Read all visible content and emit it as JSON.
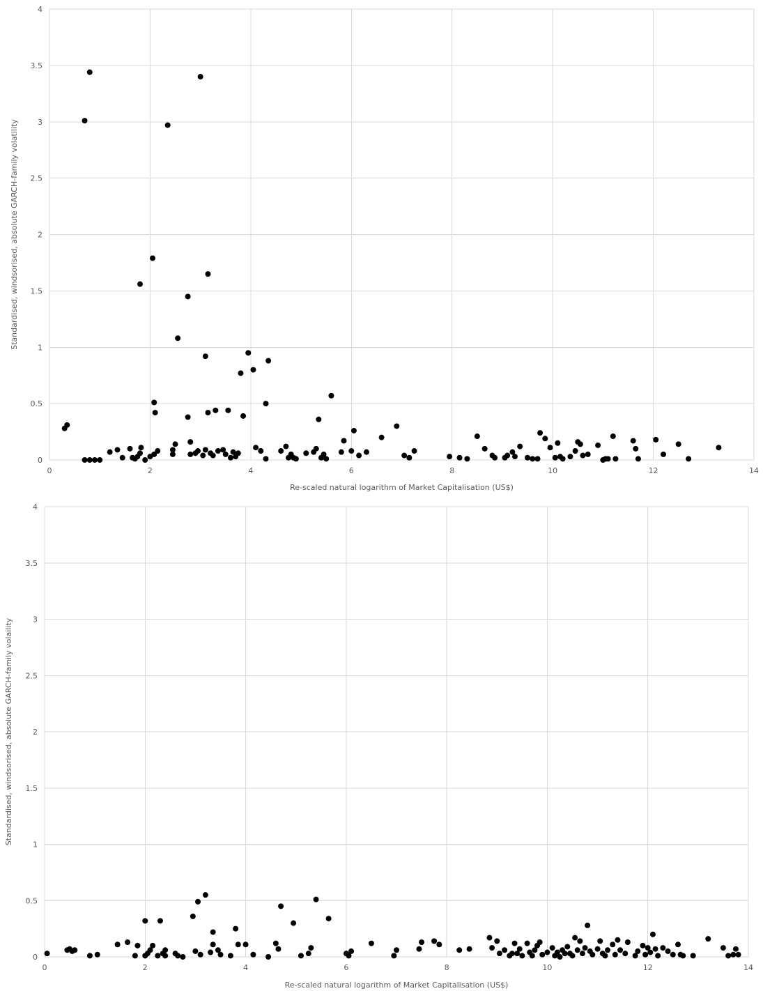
{
  "chart_data": [
    {
      "type": "scatter",
      "title": "",
      "xlabel": "Re-scaled natural logarithm of Market Capitalisation (US$)",
      "ylabel": "Standardised, windsorised, absolute GARCH-family volatility",
      "xlim": [
        0,
        14
      ],
      "ylim": [
        0,
        4
      ],
      "xticks": [
        0,
        2,
        4,
        6,
        8,
        10,
        12,
        14
      ],
      "yticks": [
        0,
        0.5,
        1,
        1.5,
        2,
        2.5,
        3,
        3.5,
        4
      ],
      "xtick_labels": [
        "0",
        "2",
        "4",
        "6",
        "8",
        "10",
        "12",
        "14"
      ],
      "ytick_labels": [
        "0",
        "0.5",
        "1",
        "1.5",
        "2",
        "2.5",
        "3",
        "3.5",
        "4"
      ],
      "grid": true,
      "marker_color": "#000000",
      "points": [
        [
          0.3,
          0.28
        ],
        [
          0.35,
          0.31
        ],
        [
          0.8,
          3.44
        ],
        [
          0.7,
          3.01
        ],
        [
          0.7,
          0.0
        ],
        [
          0.8,
          0.0
        ],
        [
          0.9,
          0.0
        ],
        [
          1.0,
          0.0
        ],
        [
          1.2,
          0.07
        ],
        [
          1.35,
          0.09
        ],
        [
          1.45,
          0.02
        ],
        [
          1.6,
          0.1
        ],
        [
          1.65,
          0.02
        ],
        [
          1.7,
          0.01
        ],
        [
          1.75,
          0.03
        ],
        [
          1.8,
          0.06
        ],
        [
          1.8,
          1.56
        ],
        [
          1.82,
          0.11
        ],
        [
          1.9,
          0.0
        ],
        [
          2.0,
          0.03
        ],
        [
          2.05,
          1.79
        ],
        [
          2.08,
          0.51
        ],
        [
          2.1,
          0.42
        ],
        [
          2.08,
          0.05
        ],
        [
          2.15,
          0.08
        ],
        [
          2.35,
          2.97
        ],
        [
          2.45,
          0.09
        ],
        [
          2.5,
          0.14
        ],
        [
          2.45,
          0.05
        ],
        [
          2.55,
          1.08
        ],
        [
          2.75,
          1.45
        ],
        [
          2.75,
          0.38
        ],
        [
          2.8,
          0.16
        ],
        [
          2.8,
          0.05
        ],
        [
          2.9,
          0.06
        ],
        [
          2.95,
          0.08
        ],
        [
          3.0,
          3.4
        ],
        [
          3.05,
          0.04
        ],
        [
          3.1,
          0.92
        ],
        [
          3.1,
          0.09
        ],
        [
          3.15,
          1.65
        ],
        [
          3.15,
          0.42
        ],
        [
          3.2,
          0.06
        ],
        [
          3.25,
          0.04
        ],
        [
          3.3,
          0.44
        ],
        [
          3.35,
          0.08
        ],
        [
          3.45,
          0.09
        ],
        [
          3.5,
          0.05
        ],
        [
          3.55,
          0.44
        ],
        [
          3.6,
          0.02
        ],
        [
          3.65,
          0.07
        ],
        [
          3.7,
          0.03
        ],
        [
          3.75,
          0.06
        ],
        [
          3.8,
          0.77
        ],
        [
          3.85,
          0.39
        ],
        [
          3.95,
          0.95
        ],
        [
          4.05,
          0.8
        ],
        [
          4.1,
          0.11
        ],
        [
          4.2,
          0.08
        ],
        [
          4.3,
          0.01
        ],
        [
          4.3,
          0.5
        ],
        [
          4.35,
          0.88
        ],
        [
          4.6,
          0.08
        ],
        [
          4.7,
          0.12
        ],
        [
          4.75,
          0.02
        ],
        [
          4.8,
          0.05
        ],
        [
          4.85,
          0.02
        ],
        [
          4.9,
          0.01
        ],
        [
          5.1,
          0.06
        ],
        [
          5.25,
          0.07
        ],
        [
          5.3,
          0.1
        ],
        [
          5.35,
          0.36
        ],
        [
          5.4,
          0.02
        ],
        [
          5.45,
          0.05
        ],
        [
          5.5,
          0.01
        ],
        [
          5.6,
          0.57
        ],
        [
          5.8,
          0.07
        ],
        [
          5.85,
          0.17
        ],
        [
          6.0,
          0.08
        ],
        [
          6.05,
          0.26
        ],
        [
          6.15,
          0.04
        ],
        [
          6.3,
          0.07
        ],
        [
          6.6,
          0.2
        ],
        [
          6.9,
          0.3
        ],
        [
          7.05,
          0.04
        ],
        [
          7.15,
          0.02
        ],
        [
          7.25,
          0.08
        ],
        [
          7.95,
          0.03
        ],
        [
          8.15,
          0.02
        ],
        [
          8.3,
          0.01
        ],
        [
          8.5,
          0.21
        ],
        [
          8.65,
          0.1
        ],
        [
          8.8,
          0.04
        ],
        [
          8.85,
          0.02
        ],
        [
          9.05,
          0.02
        ],
        [
          9.1,
          0.04
        ],
        [
          9.2,
          0.07
        ],
        [
          9.25,
          0.03
        ],
        [
          9.35,
          0.12
        ],
        [
          9.5,
          0.02
        ],
        [
          9.6,
          0.01
        ],
        [
          9.7,
          0.01
        ],
        [
          9.75,
          0.24
        ],
        [
          9.85,
          0.19
        ],
        [
          9.95,
          0.11
        ],
        [
          10.05,
          0.02
        ],
        [
          10.1,
          0.15
        ],
        [
          10.15,
          0.03
        ],
        [
          10.2,
          0.01
        ],
        [
          10.35,
          0.03
        ],
        [
          10.45,
          0.08
        ],
        [
          10.5,
          0.16
        ],
        [
          10.55,
          0.14
        ],
        [
          10.6,
          0.04
        ],
        [
          10.7,
          0.05
        ],
        [
          10.9,
          0.13
        ],
        [
          11.0,
          0.0
        ],
        [
          11.05,
          0.01
        ],
        [
          11.1,
          0.01
        ],
        [
          11.2,
          0.21
        ],
        [
          11.25,
          0.01
        ],
        [
          11.6,
          0.17
        ],
        [
          11.65,
          0.1
        ],
        [
          11.7,
          0.01
        ],
        [
          12.05,
          0.18
        ],
        [
          12.2,
          0.05
        ],
        [
          12.5,
          0.14
        ],
        [
          12.7,
          0.01
        ],
        [
          13.3,
          0.11
        ]
      ]
    },
    {
      "type": "scatter",
      "title": "",
      "xlabel": "Re-scaled natural logarithm of Market Capitalisation (US$)",
      "ylabel": "Standardised, windsorised, absolute GARCH-family volaility",
      "xlim": [
        0,
        14
      ],
      "ylim": [
        0,
        4
      ],
      "xticks": [
        0,
        2,
        4,
        6,
        8,
        10,
        12,
        14
      ],
      "yticks": [
        0,
        0.5,
        1,
        1.5,
        2,
        2.5,
        3,
        3.5,
        4
      ],
      "xtick_labels": [
        "0",
        "2",
        "4",
        "6",
        "8",
        "10",
        "12",
        "14"
      ],
      "ytick_labels": [
        "0",
        "0.5",
        "1",
        "1.5",
        "2",
        "2.5",
        "3",
        "3.5",
        "4"
      ],
      "grid": true,
      "marker_color": "#000000",
      "points": [
        [
          0.05,
          0.03
        ],
        [
          0.45,
          0.06
        ],
        [
          0.5,
          0.07
        ],
        [
          0.55,
          0.05
        ],
        [
          0.6,
          0.06
        ],
        [
          0.9,
          0.01
        ],
        [
          1.05,
          0.02
        ],
        [
          1.45,
          0.11
        ],
        [
          1.65,
          0.13
        ],
        [
          1.8,
          0.01
        ],
        [
          1.85,
          0.1
        ],
        [
          2.0,
          0.32
        ],
        [
          2.0,
          0.01
        ],
        [
          2.05,
          0.03
        ],
        [
          2.1,
          0.06
        ],
        [
          2.15,
          0.1
        ],
        [
          2.25,
          0.01
        ],
        [
          2.3,
          0.32
        ],
        [
          2.35,
          0.03
        ],
        [
          2.4,
          0.06
        ],
        [
          2.4,
          0.01
        ],
        [
          2.6,
          0.03
        ],
        [
          2.65,
          0.01
        ],
        [
          2.75,
          0.0
        ],
        [
          2.95,
          0.36
        ],
        [
          3.0,
          0.05
        ],
        [
          3.05,
          0.49
        ],
        [
          3.1,
          0.02
        ],
        [
          3.2,
          0.55
        ],
        [
          3.3,
          0.04
        ],
        [
          3.35,
          0.22
        ],
        [
          3.35,
          0.11
        ],
        [
          3.45,
          0.06
        ],
        [
          3.5,
          0.02
        ],
        [
          3.7,
          0.01
        ],
        [
          3.8,
          0.25
        ],
        [
          3.85,
          0.11
        ],
        [
          4.0,
          0.11
        ],
        [
          4.15,
          0.02
        ],
        [
          4.45,
          0.0
        ],
        [
          4.6,
          0.12
        ],
        [
          4.65,
          0.07
        ],
        [
          4.7,
          0.45
        ],
        [
          4.95,
          0.3
        ],
        [
          5.1,
          0.01
        ],
        [
          5.25,
          0.03
        ],
        [
          5.3,
          0.08
        ],
        [
          5.4,
          0.51
        ],
        [
          5.65,
          0.34
        ],
        [
          6.0,
          0.03
        ],
        [
          6.05,
          0.01
        ],
        [
          6.1,
          0.05
        ],
        [
          6.5,
          0.12
        ],
        [
          6.95,
          0.01
        ],
        [
          7.0,
          0.06
        ],
        [
          7.45,
          0.07
        ],
        [
          7.5,
          0.13
        ],
        [
          7.75,
          0.14
        ],
        [
          7.85,
          0.11
        ],
        [
          8.25,
          0.06
        ],
        [
          8.45,
          0.07
        ],
        [
          8.85,
          0.17
        ],
        [
          8.9,
          0.08
        ],
        [
          9.0,
          0.14
        ],
        [
          9.05,
          0.03
        ],
        [
          9.15,
          0.06
        ],
        [
          9.25,
          0.01
        ],
        [
          9.3,
          0.03
        ],
        [
          9.35,
          0.12
        ],
        [
          9.4,
          0.03
        ],
        [
          9.45,
          0.07
        ],
        [
          9.5,
          0.01
        ],
        [
          9.6,
          0.12
        ],
        [
          9.65,
          0.04
        ],
        [
          9.7,
          0.01
        ],
        [
          9.75,
          0.06
        ],
        [
          9.8,
          0.1
        ],
        [
          9.85,
          0.13
        ],
        [
          9.9,
          0.02
        ],
        [
          10.0,
          0.04
        ],
        [
          10.1,
          0.08
        ],
        [
          10.15,
          0.01
        ],
        [
          10.2,
          0.04
        ],
        [
          10.25,
          0.0
        ],
        [
          10.3,
          0.06
        ],
        [
          10.35,
          0.03
        ],
        [
          10.4,
          0.09
        ],
        [
          10.45,
          0.03
        ],
        [
          10.5,
          0.01
        ],
        [
          10.55,
          0.17
        ],
        [
          10.6,
          0.06
        ],
        [
          10.65,
          0.14
        ],
        [
          10.7,
          0.03
        ],
        [
          10.75,
          0.08
        ],
        [
          10.8,
          0.28
        ],
        [
          10.85,
          0.05
        ],
        [
          10.9,
          0.02
        ],
        [
          11.0,
          0.07
        ],
        [
          11.05,
          0.14
        ],
        [
          11.1,
          0.03
        ],
        [
          11.15,
          0.01
        ],
        [
          11.2,
          0.06
        ],
        [
          11.3,
          0.11
        ],
        [
          11.35,
          0.02
        ],
        [
          11.4,
          0.15
        ],
        [
          11.45,
          0.06
        ],
        [
          11.55,
          0.03
        ],
        [
          11.6,
          0.13
        ],
        [
          11.75,
          0.01
        ],
        [
          11.8,
          0.05
        ],
        [
          11.9,
          0.1
        ],
        [
          11.95,
          0.02
        ],
        [
          12.0,
          0.08
        ],
        [
          12.05,
          0.04
        ],
        [
          12.1,
          0.2
        ],
        [
          12.15,
          0.07
        ],
        [
          12.2,
          0.01
        ],
        [
          12.3,
          0.08
        ],
        [
          12.4,
          0.05
        ],
        [
          12.5,
          0.02
        ],
        [
          12.6,
          0.11
        ],
        [
          12.65,
          0.02
        ],
        [
          12.7,
          0.01
        ],
        [
          12.9,
          0.01
        ],
        [
          13.2,
          0.16
        ],
        [
          13.5,
          0.08
        ],
        [
          13.6,
          0.01
        ],
        [
          13.7,
          0.02
        ],
        [
          13.75,
          0.07
        ],
        [
          13.8,
          0.02
        ]
      ]
    }
  ]
}
